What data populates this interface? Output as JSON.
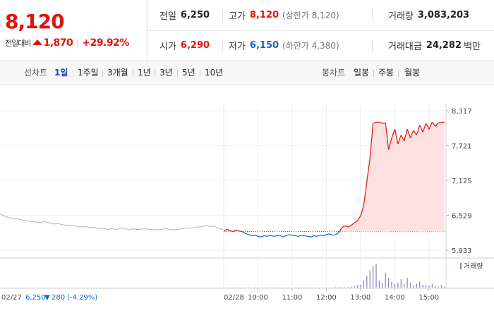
{
  "header": {
    "price": "8,120",
    "change_label": "전일대비",
    "change_amount": "1,870",
    "change_percent": "+29.92%",
    "stats": {
      "prev_close": {
        "label": "전일",
        "value": "6,250"
      },
      "high": {
        "label": "고가",
        "value": "8,120",
        "sub": "(상한가 8,120)"
      },
      "volume": {
        "label": "거래량",
        "value": "3,083,203"
      },
      "open": {
        "label": "시가",
        "value": "6,290"
      },
      "low": {
        "label": "저가",
        "value": "6,150",
        "sub": "(하한가 4,380)"
      },
      "turnover": {
        "label": "거래대금",
        "value": "24,282",
        "unit": "백만"
      }
    }
  },
  "toolbar": {
    "line_chart_label": "선차트",
    "line_options": [
      "1일",
      "1주일",
      "3개월",
      "1년",
      "3년",
      "5년",
      "10년"
    ],
    "active_option": "1일",
    "candle_chart_label": "봉차트",
    "candle_options": [
      "일봉",
      "주봉",
      "월봉"
    ]
  },
  "chart_data": {
    "type": "line",
    "y_ticks": [
      "8,317",
      "7,721",
      "7,125",
      "6,529",
      "5,933"
    ],
    "ylim": [
      5933,
      8317
    ],
    "reference_value": 6250,
    "x_ticks": [
      "10:00",
      "11:00",
      "12:00",
      "13:00",
      "14:00",
      "15:00"
    ],
    "date_current": "02/28",
    "volume_legend": "거래량",
    "prev_day_series": [
      6550,
      6520,
      6490,
      6480,
      6470,
      6460,
      6440,
      6430,
      6420,
      6410,
      6410,
      6420,
      6400,
      6380,
      6390,
      6370,
      6360,
      6360,
      6350,
      6330,
      6340,
      6330,
      6320,
      6320,
      6300,
      6310,
      6290,
      6300,
      6290,
      6300,
      6310,
      6280,
      6300,
      6290,
      6290,
      6300,
      6290,
      6280,
      6280,
      6290,
      6300,
      6290,
      6280,
      6290,
      6300,
      6310,
      6310,
      6320,
      6330,
      6340,
      6350,
      6340,
      6340,
      6300,
      6290
    ],
    "today_series": [
      6250,
      6290,
      6270,
      6250,
      6280,
      6260,
      6250,
      6220,
      6200,
      6180,
      6190,
      6170,
      6160,
      6180,
      6170,
      6190,
      6170,
      6180,
      6190,
      6160,
      6180,
      6200,
      6190,
      6180,
      6170,
      6190,
      6180,
      6170,
      6160,
      6180,
      6170,
      6190,
      6180,
      6200,
      6210,
      6190,
      6200,
      6230,
      6320,
      6350,
      6330,
      6360,
      6400,
      6440,
      6520,
      6700,
      7100,
      7500,
      8100,
      8120,
      8120,
      8100,
      8110,
      7650,
      7850,
      8000,
      7750,
      7900,
      7800,
      8000,
      7850,
      7980,
      7900,
      8070,
      7950,
      8100,
      8000,
      8120,
      8050,
      8110,
      8120,
      8120
    ],
    "today_volume": [
      1,
      1,
      0,
      1,
      1,
      0,
      1,
      1,
      1,
      0,
      1,
      1,
      0,
      1,
      1,
      1,
      0,
      1,
      1,
      0,
      1,
      1,
      0,
      1,
      1,
      0,
      1,
      1,
      1,
      0,
      1,
      1,
      0,
      1,
      1,
      1,
      2,
      2,
      3,
      2,
      3,
      4,
      6,
      10,
      12,
      30,
      50,
      70,
      90,
      100,
      30,
      20,
      60,
      40,
      25,
      15,
      20,
      35,
      15,
      40,
      20,
      10,
      15,
      25,
      12,
      10,
      8,
      15,
      6,
      5,
      10,
      4
    ],
    "footer": {
      "prev_date": "02/27",
      "prev_price": "6,250",
      "prev_change_arrow": "▼",
      "prev_change": "280",
      "prev_change_pct": "(-4.29%)"
    },
    "colors": {
      "up": "#e1140a",
      "down": "#1062c9",
      "prev": "#b3b3b3",
      "up_fill": "#fde1e1",
      "volume": "#8a7bb8"
    }
  }
}
